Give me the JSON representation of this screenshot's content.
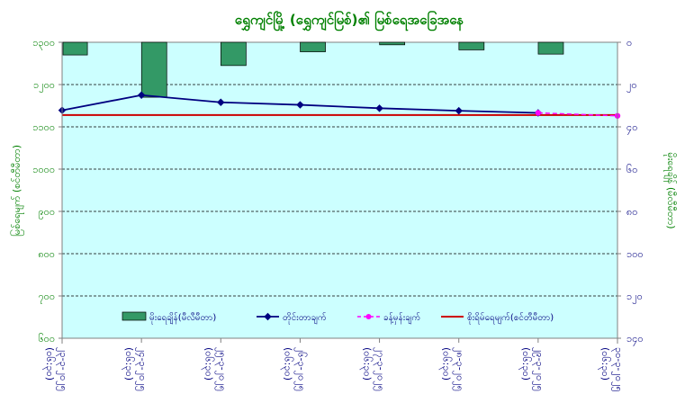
{
  "colors": {
    "plot_bg": "#ccffff",
    "bars": "#339966",
    "water_level": "#000080",
    "forecast": "#ff00ff",
    "danger": "#cc0000",
    "title": "#008000",
    "left_axis": "#008000",
    "right_axis": "#000080",
    "grid": "#000000"
  },
  "chart_data": {
    "type": "bar+line",
    "title": "ရွှေကျင်မြို့ (ရွှေကျင်မြစ်)၏ မြစ်ရေအခြေအနေ",
    "ylabel_left": "မြစ်ရေမျက် (စင်တီမီတာ)",
    "ylabel_right": "မိုးရေချိန် (မီလီမီတာ)",
    "left_axis": {
      "min": 600,
      "max": 1300,
      "ticks": [
        "၆၀၀",
        "၇၀၀",
        "၈၀၀",
        "၉၀၀",
        "၁၀၀၀",
        "၁၁၀၀",
        "၁၂၀၀",
        "၁၃၀၀"
      ]
    },
    "right_axis": {
      "min": 0,
      "max": 140,
      "inverted": true,
      "ticks": [
        "၀",
        "၂၀",
        "၄၀",
        "၆၀",
        "၈၀",
        "၁၀၀",
        "၁၂၀",
        "၁၄၀"
      ]
    },
    "categories": [
      [
        "၂၃-၃-၂၀၂၅",
        "(၀၆:၃၀)"
      ],
      [
        "၂၄-၃-၂၀၂၅",
        "(၀၆:၃၀)"
      ],
      [
        "၂၅-၃-၂၀၂၅",
        "(၀၆:၃၀)"
      ],
      [
        "၂၆-၃-၂၀၂၅",
        "(၀၆:၃၀)"
      ],
      [
        "၂၇-၃-၂၀၂၅",
        "(၀၆:၃၀)"
      ],
      [
        "၂၈-၃-၂၀၂၅",
        "(၀၆:၃၀)"
      ],
      [
        "၂၉-၃-၂၀၂၅",
        "(၀၆:၃၀)"
      ],
      [
        "၃၀-၃-၂၀၂၅",
        "(၀၆:၃၀)"
      ]
    ],
    "series": [
      {
        "name": "မိုးရေချိန်(မီလီမီတာ)",
        "kind": "bar",
        "axis": "right",
        "values": [
          6,
          26,
          11,
          4.5,
          1.2,
          3.6,
          5.6,
          null
        ]
      },
      {
        "name": "တိုင်းတာချက်",
        "kind": "line",
        "axis": "left",
        "values": [
          1139,
          1175,
          1158,
          1152,
          1144,
          1138,
          1133,
          null
        ]
      },
      {
        "name": "ခန့်မှန်းချက်",
        "kind": "line-dashed",
        "axis": "left",
        "values": [
          null,
          null,
          null,
          null,
          null,
          null,
          1133,
          1126
        ]
      },
      {
        "name": "စိုးရိမ်ရေမျက်(စင်တီမီတာ)",
        "kind": "hline",
        "axis": "left",
        "values": [
          1128,
          1128,
          1128,
          1128,
          1128,
          1128,
          1128,
          1128
        ]
      }
    ],
    "grid": true,
    "legend": "bottom-inside"
  }
}
